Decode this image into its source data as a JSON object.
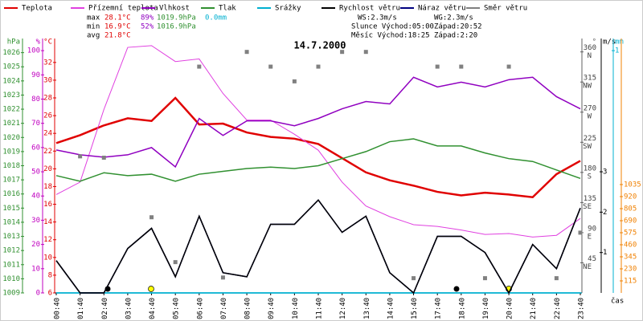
{
  "chart_data": {
    "type": "line",
    "title": "14.7.2000",
    "x_label": "čas",
    "categories": [
      "00:40",
      "01:40",
      "02:40",
      "03:40",
      "04:40",
      "05:40",
      "06:40",
      "07:40",
      "08:40",
      "09:40",
      "10:40",
      "11:40",
      "12:40",
      "13:40",
      "14:40",
      "15:40",
      "17:40",
      "18:40",
      "19:40",
      "20:40",
      "21:40",
      "22:40",
      "23:40"
    ],
    "axes": {
      "press": {
        "label": "hPa",
        "color": "#309030",
        "ylim": [
          1009,
          1027
        ],
        "yticks": [
          1009,
          1010,
          1011,
          1012,
          1013,
          1014,
          1015,
          1016,
          1017,
          1018,
          1019,
          1020,
          1021,
          1022,
          1023,
          1024,
          1025,
          1026
        ]
      },
      "hum": {
        "label": "%",
        "color": "#c000c0",
        "ylim": [
          0,
          105
        ],
        "yticks": [
          0,
          10,
          20,
          30,
          40,
          50,
          60,
          70,
          80,
          90,
          100
        ]
      },
      "temp": {
        "label": "°C",
        "color": "#e00000",
        "ylim": [
          6,
          34.7
        ],
        "yticks": [
          6,
          8,
          10,
          12,
          14,
          16,
          18,
          20,
          22,
          24,
          26,
          28,
          30,
          32
        ]
      },
      "dir": {
        "label": "°",
        "color": "#606060",
        "ylim": [
          0,
          380
        ],
        "yticks": [
          45,
          90,
          135,
          180,
          225,
          270,
          315,
          360
        ],
        "tick_names": [
          "NE",
          "E",
          "SE",
          "S",
          "SW",
          "W",
          "NW",
          "N"
        ]
      },
      "wind": {
        "label": "m/s",
        "color": "#000000",
        "ylim": [
          0,
          6.3
        ],
        "yticks": [
          1,
          2,
          3
        ]
      },
      "rain": {
        "label": "mm",
        "color": "#00b0d0",
        "ylim": [
          0,
          1.05
        ],
        "yticks": [
          1
        ]
      },
      "rad": {
        "color": "#f08000",
        "ylim": [
          0,
          2430
        ],
        "yticks": [
          115,
          230,
          345,
          460,
          575,
          690,
          805,
          920,
          1035
        ]
      }
    },
    "series": [
      {
        "name": "Teplota",
        "color": "#e00000",
        "axis": "temp",
        "width": 2.5,
        "values": [
          22.9,
          23.8,
          24.9,
          25.7,
          25.4,
          28.0,
          25.0,
          25.1,
          24.1,
          23.6,
          23.4,
          22.8,
          21.2,
          19.6,
          18.7,
          18.1,
          17.4,
          17.0,
          17.3,
          17.1,
          16.8,
          19.4,
          20.9
        ]
      },
      {
        "name": "Přízemní teplota",
        "color": "#e040e0",
        "axis": "temp",
        "width": 1,
        "values": [
          17.1,
          18.5,
          26.7,
          33.7,
          33.9,
          32.1,
          32.4,
          28.5,
          25.5,
          25.5,
          23.9,
          22.1,
          18.5,
          15.8,
          14.6,
          13.7,
          13.5,
          13.1,
          12.6,
          12.7,
          12.3,
          12.5,
          14.4
        ]
      },
      {
        "name": "Vlhkost",
        "color": "#9000c0",
        "axis": "hum",
        "width": 1.5,
        "values": [
          59,
          57,
          56,
          57,
          60,
          52,
          72,
          65,
          71,
          71,
          69,
          72,
          76,
          79,
          78,
          89,
          85,
          87,
          85,
          88,
          89,
          81,
          76
        ]
      },
      {
        "name": "Tlak",
        "color": "#309030",
        "axis": "press",
        "width": 1.5,
        "values": [
          1017.3,
          1016.9,
          1017.5,
          1017.3,
          1017.4,
          1016.9,
          1017.4,
          1017.6,
          1017.8,
          1017.9,
          1017.8,
          1018.0,
          1018.5,
          1019.0,
          1019.7,
          1019.9,
          1019.4,
          1019.4,
          1018.9,
          1018.5,
          1018.3,
          1017.7,
          1017.1
        ]
      },
      {
        "name": "Srážky",
        "color": "#00b0d0",
        "axis": "rain",
        "width": 1.5,
        "values": [
          0,
          0,
          0,
          0,
          0,
          0,
          0,
          0,
          0,
          0,
          0,
          0,
          0,
          0,
          0,
          0,
          0,
          0,
          0,
          0,
          0,
          0,
          0
        ]
      },
      {
        "name": "Náraz větru",
        "color": "#000080",
        "axis": "wind",
        "width": 1.5,
        "values": [
          0.8,
          0,
          0,
          1.1,
          1.6,
          0.4,
          1.9,
          0.5,
          0.4,
          1.7,
          1.7,
          2.3,
          1.5,
          1.9,
          0.5,
          0,
          1.4,
          1.4,
          1.0,
          0,
          1.2,
          0.6,
          2.1
        ]
      },
      {
        "name": "Rychlost větru",
        "color": "#000000",
        "axis": "wind",
        "width": 1.5,
        "values": [
          0.8,
          0,
          0,
          1.1,
          1.6,
          0.4,
          1.9,
          0.5,
          0.4,
          1.7,
          1.7,
          2.3,
          1.5,
          1.9,
          0.5,
          0,
          1.4,
          1.4,
          1.0,
          0,
          1.2,
          0.6,
          2.1
        ]
      },
      {
        "name": "Směr větru",
        "color": "#808080",
        "axis": "dir",
        "markers": true,
        "values": [
          null,
          204,
          202,
          null,
          113,
          46,
          338,
          23,
          360,
          338,
          316,
          338,
          360,
          360,
          null,
          22,
          338,
          338,
          22,
          338,
          null,
          22,
          90
        ]
      }
    ],
    "legend_order": [
      0,
      1,
      2,
      3,
      4,
      6,
      5,
      7
    ],
    "stats": {
      "max": [
        "max",
        "28.1°C",
        "89%",
        "1019.9hPa",
        "0.0mm"
      ],
      "min": [
        "min",
        "16.9°C",
        "52%",
        "1016.9hPa"
      ],
      "avg": [
        "avg",
        "21.8°C"
      ]
    },
    "info": {
      "ws": "WS:2.3m/s",
      "wg": "WG:2.3m/s",
      "sun_rise": "Slunce Východ:05:00",
      "sun_set": "Západ:20:52",
      "moon_rise": "Měsíc Východ:18:25",
      "moon_set": "Západ:2:20"
    }
  }
}
